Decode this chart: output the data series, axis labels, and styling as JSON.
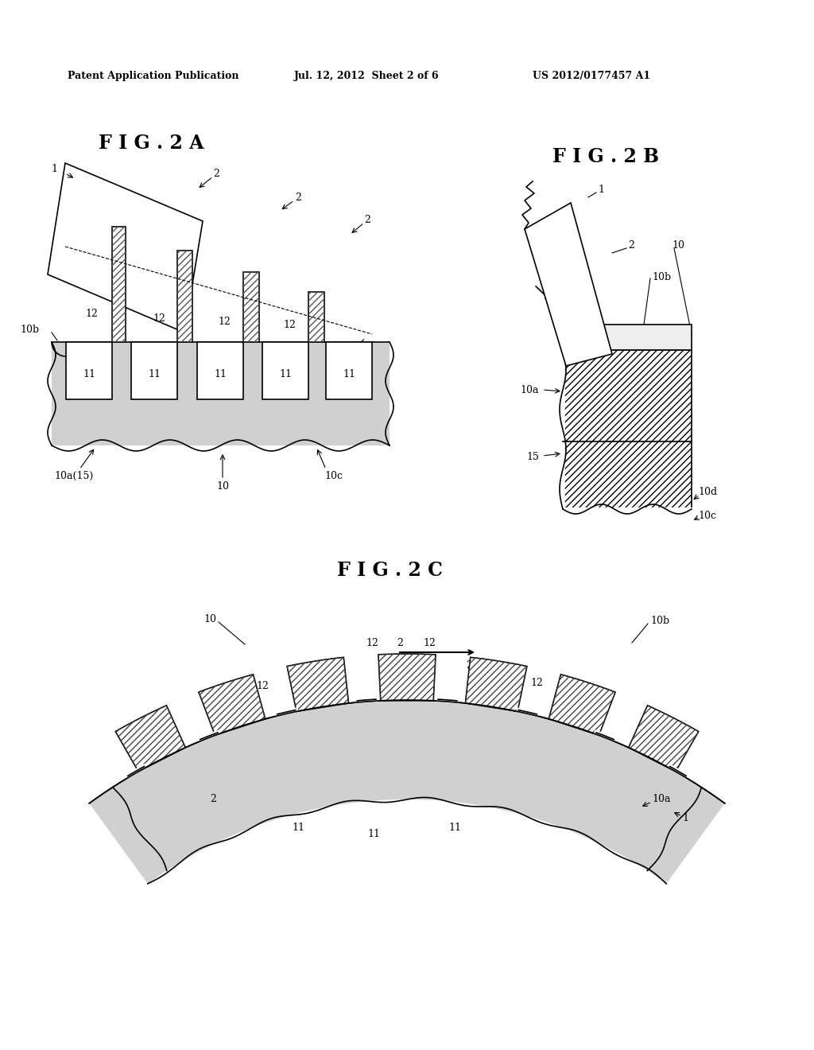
{
  "header_left": "Patent Application Publication",
  "header_center": "Jul. 12, 2012  Sheet 2 of 6",
  "header_right": "US 2012/0177457 A1",
  "fig2a_title": "F I G . 2 A",
  "fig2b_title": "F I G . 2 B",
  "fig2c_title": "F I G . 2 C",
  "bg_color": "#ffffff",
  "line_color": "#000000",
  "hatch_color": "#000000",
  "light_gray": "#d8d8d8",
  "dotted_gray": "#aaaaaa"
}
